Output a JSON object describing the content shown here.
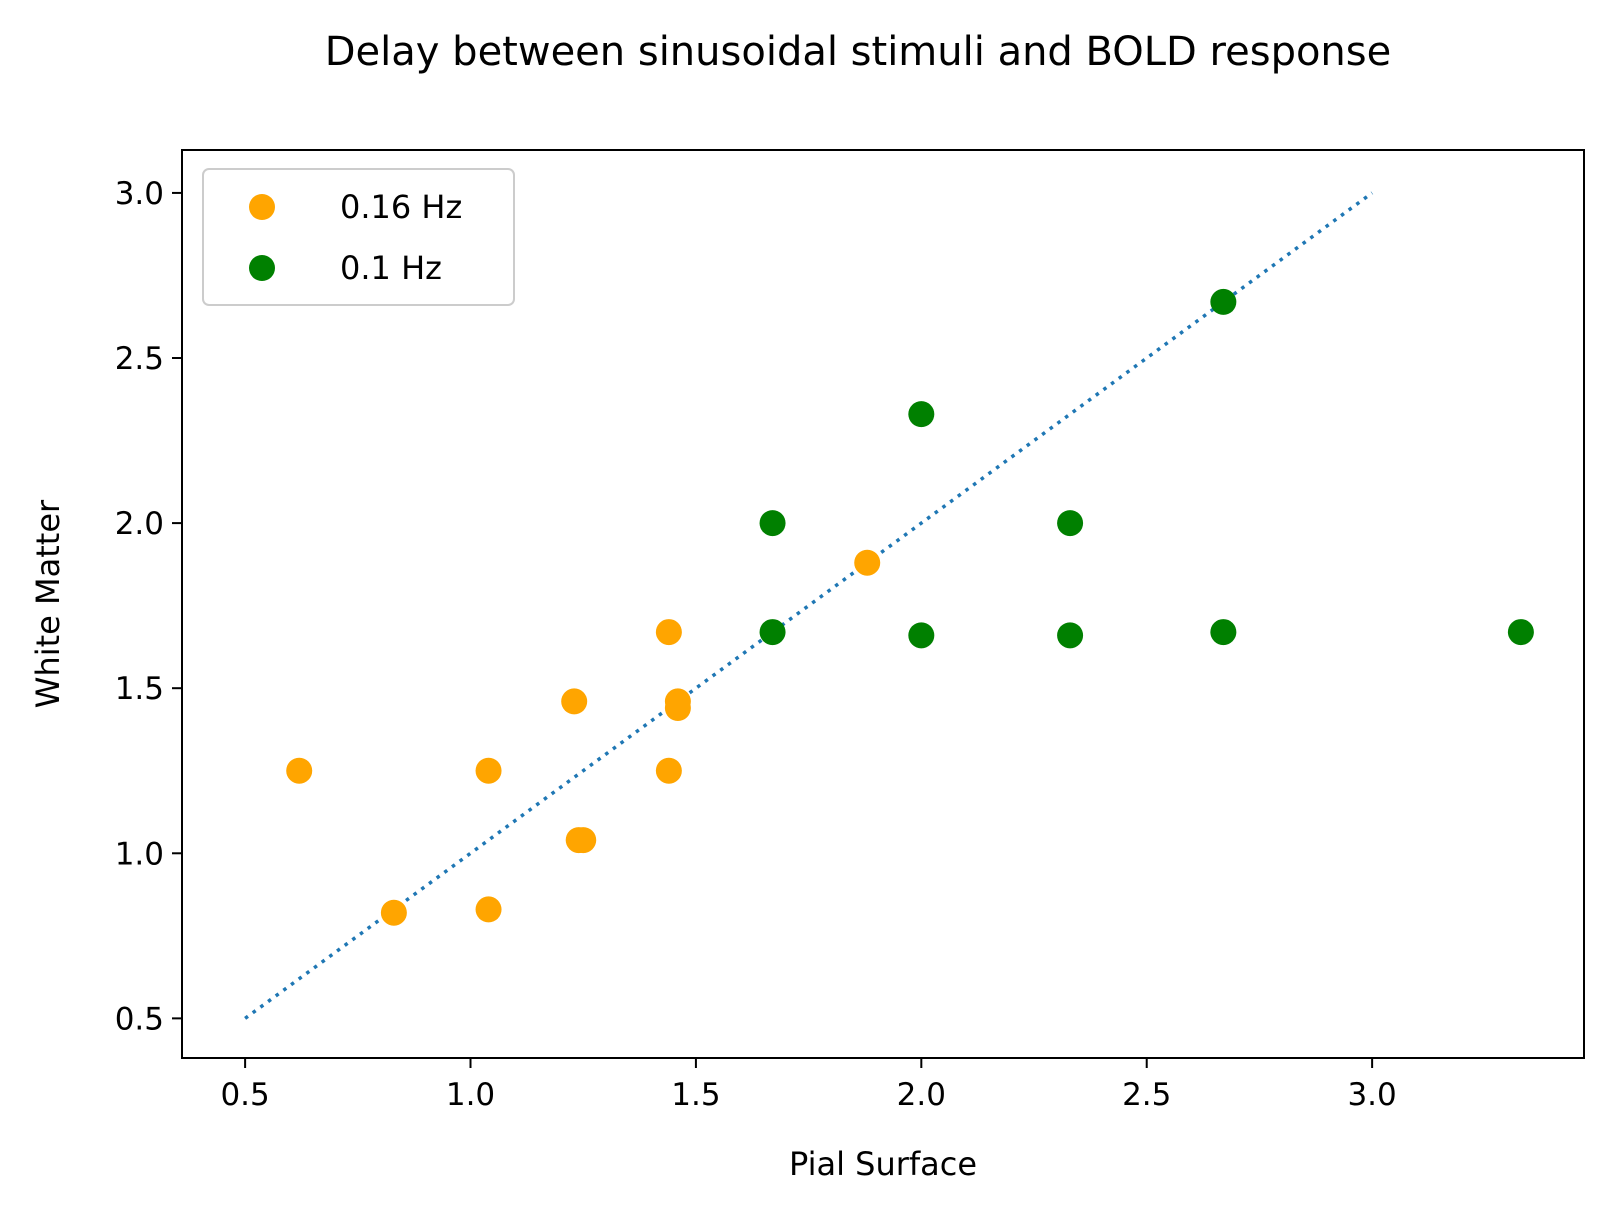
{
  "chart_data": {
    "type": "scatter",
    "title": "Delay between sinusoidal stimuli and BOLD response",
    "xlabel": "Pial Surface",
    "ylabel": "White Matter",
    "xlim": [
      0.36,
      3.47
    ],
    "ylim": [
      0.38,
      3.13
    ],
    "xticks": [
      "0.5",
      "1.0",
      "1.5",
      "2.0",
      "2.5",
      "3.0"
    ],
    "yticks": [
      "0.5",
      "1.0",
      "1.5",
      "2.0",
      "2.5",
      "3.0"
    ],
    "grid": false,
    "legend_position": "upper-left",
    "series": [
      {
        "name": "0.16 Hz",
        "color": "#ffa500",
        "x": [
          0.62,
          0.83,
          1.04,
          1.04,
          1.23,
          1.24,
          1.25,
          1.44,
          1.44,
          1.46,
          1.46,
          1.88
        ],
        "y": [
          1.25,
          0.82,
          1.25,
          0.83,
          1.46,
          1.04,
          1.04,
          1.67,
          1.25,
          1.46,
          1.44,
          1.88
        ]
      },
      {
        "name": "0.1 Hz",
        "color": "#008000",
        "x": [
          1.67,
          1.67,
          2.0,
          2.0,
          2.33,
          2.33,
          2.67,
          2.67,
          3.33
        ],
        "y": [
          2.0,
          1.67,
          2.33,
          1.66,
          2.0,
          1.66,
          2.67,
          1.67,
          1.67
        ]
      }
    ],
    "reference_line": {
      "style": "dotted",
      "color": "#1f77b4",
      "x": [
        0.5,
        3.0
      ],
      "y": [
        0.5,
        3.0
      ]
    }
  }
}
